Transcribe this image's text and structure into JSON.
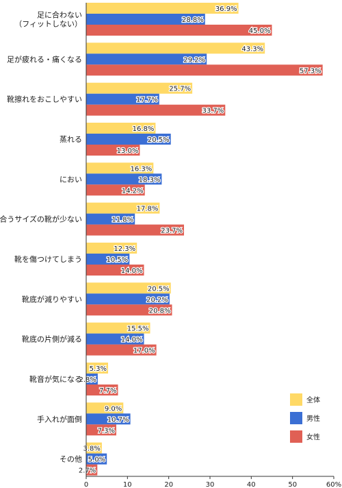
{
  "chart_data": {
    "type": "bar",
    "orientation": "horizontal",
    "categories": [
      [
        "足に合わない",
        "（フィットしない）"
      ],
      [
        "足が疲れる・痛くなる"
      ],
      [
        "靴擦れをおこしやすい"
      ],
      [
        "蒸れる"
      ],
      [
        "におい"
      ],
      [
        "合うサイズの靴が少ない"
      ],
      [
        "靴を傷つけてしまう"
      ],
      [
        "靴底が減りやすい"
      ],
      [
        "靴底の片側が減る"
      ],
      [
        "靴音が気になる"
      ],
      [
        "手入れが面倒"
      ],
      [
        "その他"
      ]
    ],
    "series": [
      {
        "name": "全体",
        "color": "#FFD966",
        "values": [
          36.9,
          43.3,
          25.7,
          16.8,
          16.3,
          17.8,
          12.3,
          20.5,
          15.5,
          5.3,
          9.0,
          3.8
        ],
        "labels": [
          "36.9%",
          "43.3%",
          "25.7%",
          "16.8%",
          "16.3%",
          "17.8%",
          "12.3%",
          "20.5%",
          "15.5%",
          "5.3%",
          "9.0%",
          "3.8%"
        ]
      },
      {
        "name": "男性",
        "color": "#3B6FD4",
        "values": [
          28.8,
          29.2,
          17.7,
          20.5,
          18.3,
          11.8,
          10.5,
          20.2,
          14.0,
          2.8,
          10.7,
          5.0
        ],
        "labels": [
          "28.8%",
          "29.2%",
          "17.7%",
          "20.5%",
          "18.3%",
          "11.8%",
          "10.5%",
          "20.2%",
          "14.0%",
          "2.8%",
          "10.7%",
          "5.0%"
        ]
      },
      {
        "name": "女性",
        "color": "#E06055",
        "values": [
          45.0,
          57.3,
          33.7,
          13.0,
          14.2,
          23.7,
          14.0,
          20.8,
          17.0,
          7.7,
          7.3,
          2.7
        ],
        "labels": [
          "45.0%",
          "57.3%",
          "33.7%",
          "13.0%",
          "14.2%",
          "23.7%",
          "14.0%",
          "20.8%",
          "17.0%",
          "7.7%",
          "7.3%",
          "2.7%"
        ]
      }
    ],
    "xlim": [
      0,
      60
    ],
    "xticks": [
      0,
      10,
      20,
      30,
      40,
      50,
      60
    ],
    "xtick_labels": [
      "0",
      "10",
      "20",
      "30",
      "40",
      "50",
      "60%"
    ],
    "legend_position": "bottom-right",
    "grid": false
  }
}
